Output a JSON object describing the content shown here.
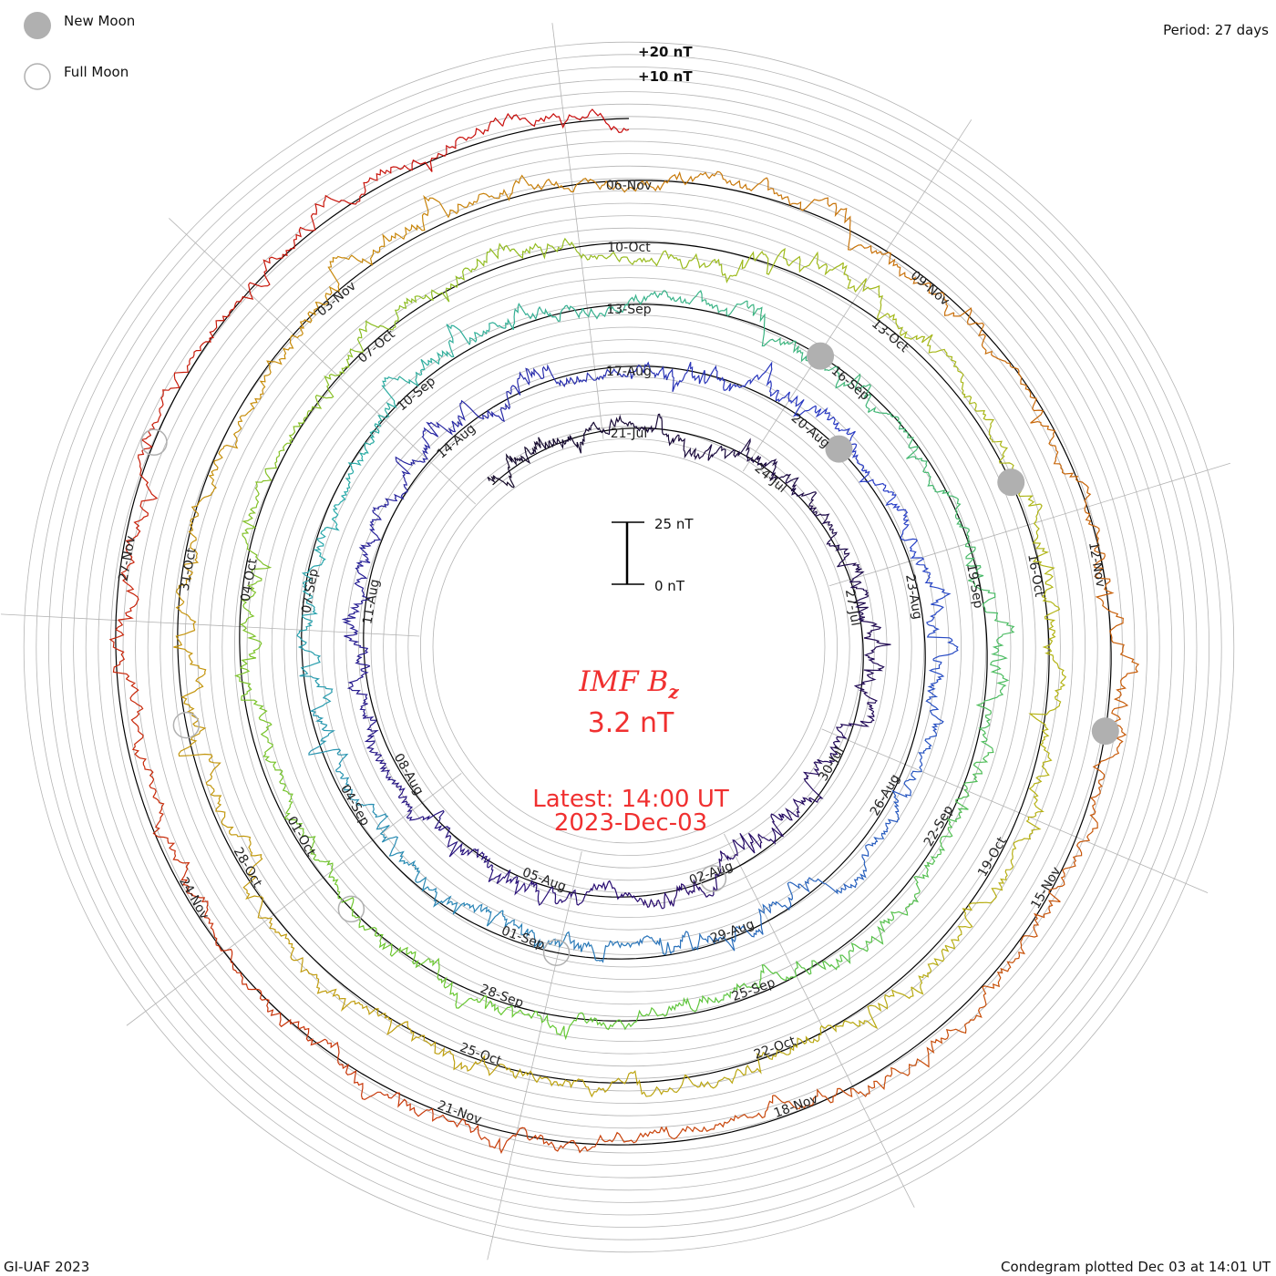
{
  "legend": {
    "new_moon": "New Moon",
    "full_moon": "Full Moon"
  },
  "period_label": "Period: 27 days",
  "footer_left": "GI-UAF 2023",
  "footer_right": "Condegram plotted Dec 03 at 14:01 UT",
  "colors": {
    "title": "#f03030",
    "grid": "#b4b4b4",
    "moon": "#b0b0b0",
    "baseline": "#000000"
  },
  "chart_data": {
    "type": "line",
    "layout": "spiral",
    "title": "IMF Bz",
    "title_main": "IMF B",
    "title_sub": "z",
    "current_value": "3.2 nT",
    "latest_label": "Latest: 14:00 UT",
    "latest_date": "2023-Dec-03",
    "period_days": 27,
    "start": "2023-07-18",
    "end": "2023-12-03T14:00",
    "scale_bar": {
      "top": "25 nT",
      "bottom": "0 nT",
      "top_value": 25,
      "bottom_value": 0
    },
    "ring_labels": [
      "+20 nT",
      "+10 nT"
    ],
    "ring_label_values": [
      20,
      10
    ],
    "grid_step_nT": 5,
    "date_labels": [
      "21-Jul",
      "24-Jul",
      "27-Jul",
      "30-Jul",
      "02-Aug",
      "05-Aug",
      "08-Aug",
      "11-Aug",
      "14-Aug",
      "17-Aug",
      "20-Aug",
      "23-Aug",
      "26-Aug",
      "29-Aug",
      "01-Sep",
      "04-Sep",
      "07-Sep",
      "10-Sep",
      "13-Sep",
      "16-Sep",
      "19-Sep",
      "22-Sep",
      "25-Sep",
      "28-Sep",
      "01-Oct",
      "04-Oct",
      "07-Oct",
      "10-Oct",
      "13-Oct",
      "16-Oct",
      "19-Oct",
      "22-Oct",
      "25-Oct",
      "28-Oct",
      "31-Oct",
      "03-Nov",
      "06-Nov",
      "09-Nov",
      "12-Nov",
      "15-Nov",
      "18-Nov",
      "21-Nov",
      "24-Nov",
      "27-Nov"
    ],
    "new_moon_days_from_start": [
      30.5,
      56.5,
      86,
      115.5
    ],
    "full_moon_days_from_start": [
      12,
      41.5,
      71,
      100.5,
      130
    ]
  }
}
